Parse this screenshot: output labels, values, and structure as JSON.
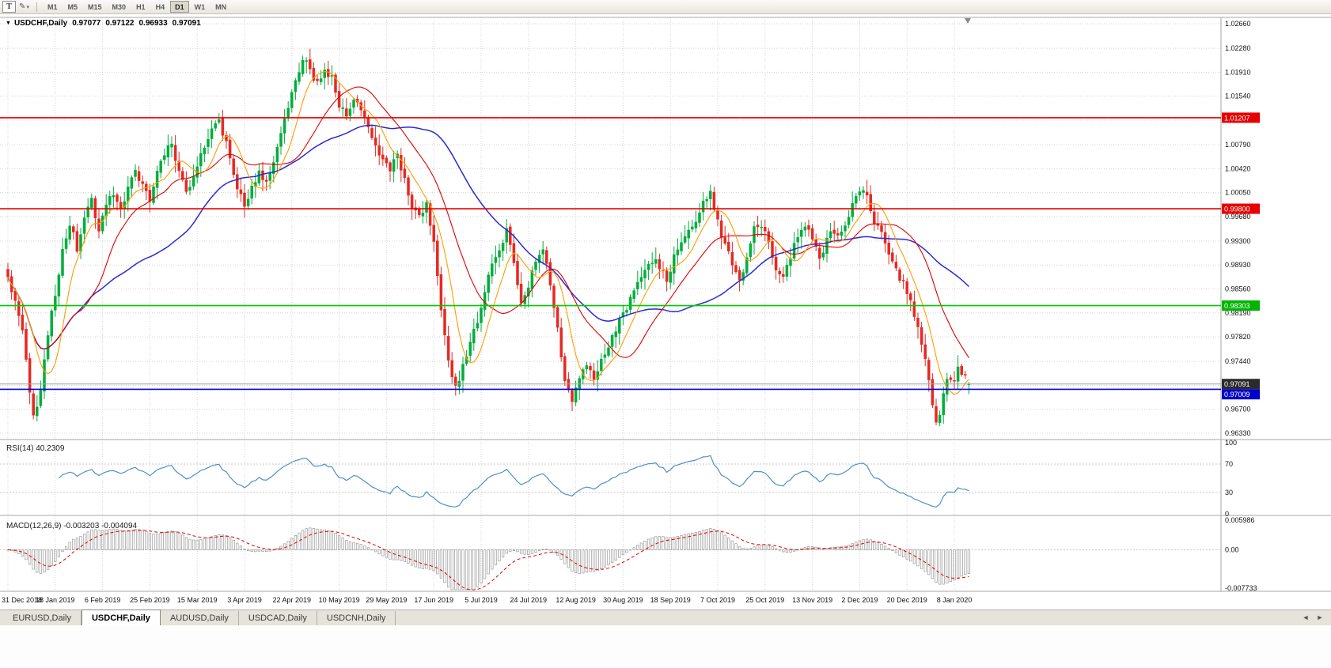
{
  "toolbar": {
    "tool_button": "T",
    "pencil_icon": "✎",
    "caret_icon": "▾",
    "timeframes": [
      "M1",
      "M5",
      "M15",
      "M30",
      "H1",
      "H4",
      "D1",
      "W1",
      "MN"
    ],
    "active_timeframe": "D1"
  },
  "chart_header": {
    "collapse_icon": "▼",
    "symbol": "USDCHF,Daily",
    "open": "0.97077",
    "high": "0.97122",
    "low": "0.96933",
    "close": "0.97091"
  },
  "chart_data": {
    "type": "candlestick",
    "symbol": "USDCHF",
    "timeframe": "Daily",
    "bars": 265,
    "bars_per_date_tick": 13,
    "price_range": [
      0.9633,
      1.0266
    ],
    "price_axis_labels": [
      "1.02660",
      "1.02280",
      "1.01910",
      "1.01540",
      "1.00790",
      "1.00420",
      "1.00050",
      "0.99680",
      "0.99300",
      "0.98930",
      "0.98560",
      "0.98190",
      "0.97820",
      "0.97440",
      "0.96700",
      "0.96330"
    ],
    "price_gridlines": [
      1.0266,
      1.0228,
      1.0191,
      1.0154,
      1.0117,
      1.0079,
      1.0042,
      1.0005,
      0.9968,
      0.993,
      0.9893,
      0.9856,
      0.9819,
      0.9782,
      0.9744,
      0.9707,
      0.967,
      0.9633
    ],
    "date_labels": [
      "31 Dec 2018",
      "18 Jan 2019",
      "6 Feb 2019",
      "25 Feb 2019",
      "15 Mar 2019",
      "3 Apr 2019",
      "22 Apr 2019",
      "10 May 2019",
      "29 May 2019",
      "17 Jun 2019",
      "5 Jul 2019",
      "24 Jul 2019",
      "12 Aug 2019",
      "30 Aug 2019",
      "18 Sep 2019",
      "7 Oct 2019",
      "25 Oct 2019",
      "13 Nov 2019",
      "2 Dec 2019",
      "20 Dec 2019",
      "8 Jan 2020"
    ],
    "up_color": "#00ad3c",
    "down_color": "#e62822",
    "last_bar": {
      "open": 0.97077,
      "high": 0.97122,
      "low": 0.96933,
      "close": 0.97091
    },
    "horizontal_levels": [
      {
        "price": 1.01207,
        "label": "1.01207",
        "line_color": "#e60000",
        "tag_color": "#e60000",
        "style": "solid"
      },
      {
        "price": 0.998,
        "label": "0.99800",
        "line_color": "#e60000",
        "tag_color": "#e60000",
        "style": "solid"
      },
      {
        "price": 0.98303,
        "label": "0.98303",
        "line_color": "#00ce00",
        "tag_color": "#00b400",
        "style": "solid"
      },
      {
        "price": 0.97009,
        "label": "0.97009",
        "line_color": "#0000e1",
        "tag_color": "#0000c8",
        "style": "solid"
      },
      {
        "price": 0.97091,
        "label": "0.97091",
        "line_color": "#98a0aa",
        "tag_color": "#2b2b2b",
        "style": "bid"
      }
    ],
    "moving_averages": [
      {
        "name": "fast",
        "period": 8,
        "color": "#ff9c00"
      },
      {
        "name": "medium",
        "period": 20,
        "color": "#e00000"
      },
      {
        "name": "slow",
        "period": 45,
        "color": "#2a2ad2"
      }
    ],
    "indicators": {
      "rsi": {
        "label": "RSI(14)",
        "value": "40.2309",
        "period": 14,
        "color": "#4f8fca",
        "axis_labels": [
          {
            "text": "100",
            "value": 100
          },
          {
            "text": "70",
            "value": 70
          },
          {
            "text": "30",
            "value": 30
          },
          {
            "text": "0",
            "value": 0
          }
        ],
        "dotted_levels": [
          70,
          30
        ]
      },
      "macd": {
        "label": "MACD(12,26,9)",
        "values": "-0.003203 -0.004094",
        "fast": 12,
        "slow": 26,
        "signal": 9,
        "histogram_color": "#9a9a9a",
        "signal_color": "#e00000",
        "axis_labels": [
          {
            "text": "0.005986",
            "value": 0.005986
          },
          {
            "text": "0.00",
            "value": 0
          },
          {
            "text": "-0.007733",
            "value": -0.007733
          }
        ]
      }
    },
    "price_anchors": [
      [
        0,
        0.9868
      ],
      [
        2,
        0.9845
      ],
      [
        4,
        0.9795
      ],
      [
        6,
        0.969
      ],
      [
        7,
        0.9655
      ],
      [
        9,
        0.97
      ],
      [
        11,
        0.979
      ],
      [
        13,
        0.985
      ],
      [
        15,
        0.9915
      ],
      [
        17,
        0.9955
      ],
      [
        19,
        0.992
      ],
      [
        21,
        0.997
      ],
      [
        23,
        0.999
      ],
      [
        25,
        0.9945
      ],
      [
        27,
        0.999
      ],
      [
        29,
        1.0005
      ],
      [
        31,
        0.9975
      ],
      [
        33,
        1.001
      ],
      [
        35,
        1.004
      ],
      [
        37,
        1.002
      ],
      [
        39,
        0.9995
      ],
      [
        41,
        1.0035
      ],
      [
        43,
        1.0065
      ],
      [
        45,
        1.008
      ],
      [
        47,
        1.004
      ],
      [
        49,
        1.0005
      ],
      [
        51,
        1.0025
      ],
      [
        53,
        1.006
      ],
      [
        55,
        1.009
      ],
      [
        57,
        1.0118
      ],
      [
        58,
        1.0122
      ],
      [
        59,
        1.01
      ],
      [
        61,
        1.006
      ],
      [
        63,
        1.001
      ],
      [
        65,
        0.9985
      ],
      [
        67,
        1.0015
      ],
      [
        69,
        1.0035
      ],
      [
        71,
        1.002
      ],
      [
        73,
        1.0055
      ],
      [
        75,
        1.0095
      ],
      [
        77,
        1.014
      ],
      [
        79,
        1.018
      ],
      [
        81,
        1.0215
      ],
      [
        83,
        1.019
      ],
      [
        85,
        1.0172
      ],
      [
        87,
        1.0195
      ],
      [
        89,
        1.0185
      ],
      [
        91,
        1.014
      ],
      [
        93,
        1.012
      ],
      [
        95,
        1.0148
      ],
      [
        97,
        1.0132
      ],
      [
        99,
        1.01
      ],
      [
        101,
        1.0082
      ],
      [
        103,
        1.0055
      ],
      [
        105,
        1.0042
      ],
      [
        107,
        1.0062
      ],
      [
        109,
        1.003
      ],
      [
        111,
        0.9985
      ],
      [
        113,
        0.9965
      ],
      [
        115,
        0.9985
      ],
      [
        117,
        0.993
      ],
      [
        119,
        0.983
      ],
      [
        121,
        0.9745
      ],
      [
        123,
        0.97
      ],
      [
        125,
        0.974
      ],
      [
        127,
        0.9775
      ],
      [
        129,
        0.9808
      ],
      [
        131,
        0.985
      ],
      [
        133,
        0.9898
      ],
      [
        135,
        0.9922
      ],
      [
        137,
        0.9945
      ],
      [
        139,
        0.9898
      ],
      [
        141,
        0.9828
      ],
      [
        143,
        0.9862
      ],
      [
        145,
        0.9895
      ],
      [
        147,
        0.9922
      ],
      [
        149,
        0.9868
      ],
      [
        151,
        0.979
      ],
      [
        153,
        0.9718
      ],
      [
        155,
        0.9688
      ],
      [
        157,
        0.9722
      ],
      [
        159,
        0.9742
      ],
      [
        161,
        0.9718
      ],
      [
        163,
        0.9748
      ],
      [
        165,
        0.9772
      ],
      [
        167,
        0.9792
      ],
      [
        169,
        0.9818
      ],
      [
        171,
        0.9842
      ],
      [
        173,
        0.9868
      ],
      [
        175,
        0.9888
      ],
      [
        177,
        0.9902
      ],
      [
        179,
        0.9888
      ],
      [
        181,
        0.9872
      ],
      [
        183,
        0.9905
      ],
      [
        185,
        0.9925
      ],
      [
        187,
        0.9942
      ],
      [
        189,
        0.9962
      ],
      [
        191,
        0.9995
      ],
      [
        193,
        1.0002
      ],
      [
        195,
        0.9958
      ],
      [
        197,
        0.9928
      ],
      [
        199,
        0.9888
      ],
      [
        201,
        0.9868
      ],
      [
        203,
        0.9908
      ],
      [
        205,
        0.9948
      ],
      [
        207,
        0.9958
      ],
      [
        209,
        0.9932
      ],
      [
        211,
        0.9888
      ],
      [
        213,
        0.9872
      ],
      [
        215,
        0.9905
      ],
      [
        217,
        0.9942
      ],
      [
        219,
        0.9958
      ],
      [
        221,
        0.9928
      ],
      [
        223,
        0.9902
      ],
      [
        225,
        0.9928
      ],
      [
        227,
        0.9948
      ],
      [
        229,
        0.9938
      ],
      [
        231,
        0.9972
      ],
      [
        233,
        1.0
      ],
      [
        234,
        1.0012
      ],
      [
        236,
        0.9998
      ],
      [
        238,
        0.9962
      ],
      [
        240,
        0.9938
      ],
      [
        242,
        0.9908
      ],
      [
        244,
        0.9882
      ],
      [
        246,
        0.9862
      ],
      [
        248,
        0.9838
      ],
      [
        250,
        0.9798
      ],
      [
        252,
        0.9742
      ],
      [
        254,
        0.9678
      ],
      [
        255,
        0.965
      ],
      [
        256,
        0.9668
      ],
      [
        257,
        0.9695
      ],
      [
        258,
        0.9712
      ],
      [
        259,
        0.9722
      ],
      [
        260,
        0.9714
      ],
      [
        261,
        0.9729
      ],
      [
        262,
        0.9722
      ],
      [
        263,
        0.9716
      ],
      [
        264,
        0.97091
      ]
    ]
  },
  "tabs": {
    "items": [
      {
        "label": "EURUSD,Daily",
        "active": false
      },
      {
        "label": "USDCHF,Daily",
        "active": true
      },
      {
        "label": "AUDUSD,Daily",
        "active": false
      },
      {
        "label": "USDCAD,Daily",
        "active": false
      },
      {
        "label": "USDCNH,Daily",
        "active": false
      }
    ],
    "scroll_left_icon": "◄",
    "scroll_right_icon": "►"
  }
}
